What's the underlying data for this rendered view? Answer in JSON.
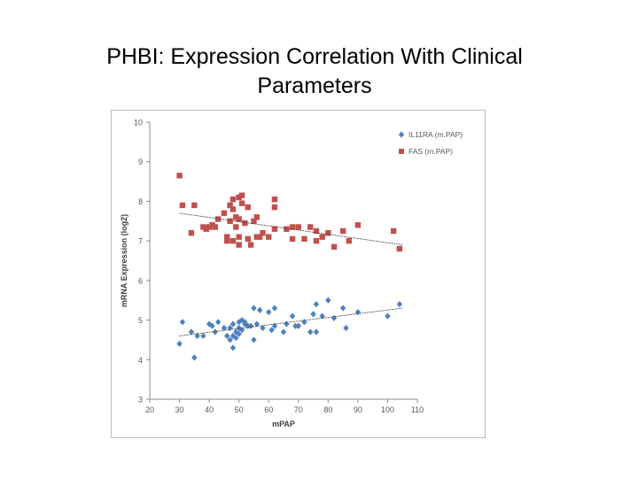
{
  "slide": {
    "title_line1": "PHBI: Expression Correlation With Clinical",
    "title_line2": "Parameters"
  },
  "chart_data": {
    "type": "scatter",
    "title": "",
    "xlabel": "mPAP",
    "ylabel": "mRNA Expression (log2)",
    "xlim": [
      20,
      110
    ],
    "ylim": [
      3,
      10
    ],
    "x_ticks": [
      20,
      30,
      40,
      50,
      60,
      70,
      80,
      90,
      100,
      110
    ],
    "y_ticks": [
      3,
      4,
      5,
      6,
      7,
      8,
      9,
      10
    ],
    "grid": false,
    "legend": "top-right",
    "series": [
      {
        "name": "IL11RA (m.PAP)",
        "color": "#4f81bd",
        "marker": "diamond",
        "trendline": [
          [
            30,
            4.6
          ],
          [
            105,
            5.3
          ]
        ],
        "points": [
          [
            30,
            4.4
          ],
          [
            31,
            4.95
          ],
          [
            34,
            4.7
          ],
          [
            35,
            4.05
          ],
          [
            36,
            4.6
          ],
          [
            38,
            4.6
          ],
          [
            40,
            4.9
          ],
          [
            41,
            4.85
          ],
          [
            42,
            4.7
          ],
          [
            43,
            4.95
          ],
          [
            45,
            4.8
          ],
          [
            46,
            4.6
          ],
          [
            47,
            4.5
          ],
          [
            47,
            4.8
          ],
          [
            48,
            4.9
          ],
          [
            48,
            4.6
          ],
          [
            48,
            4.3
          ],
          [
            49,
            4.7
          ],
          [
            49,
            4.55
          ],
          [
            50,
            4.95
          ],
          [
            50,
            4.8
          ],
          [
            50,
            4.65
          ],
          [
            51,
            4.75
          ],
          [
            51,
            5.0
          ],
          [
            52,
            4.9
          ],
          [
            52,
            4.95
          ],
          [
            53,
            4.85
          ],
          [
            54,
            4.85
          ],
          [
            55,
            5.3
          ],
          [
            55,
            4.5
          ],
          [
            56,
            4.9
          ],
          [
            57,
            5.25
          ],
          [
            58,
            4.8
          ],
          [
            60,
            5.2
          ],
          [
            61,
            4.75
          ],
          [
            62,
            4.85
          ],
          [
            62,
            5.3
          ],
          [
            65,
            4.7
          ],
          [
            66,
            4.9
          ],
          [
            68,
            5.1
          ],
          [
            69,
            4.85
          ],
          [
            70,
            4.85
          ],
          [
            72,
            4.95
          ],
          [
            74,
            4.7
          ],
          [
            75,
            5.15
          ],
          [
            76,
            5.4
          ],
          [
            76,
            4.7
          ],
          [
            78,
            5.1
          ],
          [
            80,
            5.5
          ],
          [
            82,
            5.05
          ],
          [
            85,
            5.3
          ],
          [
            86,
            4.8
          ],
          [
            90,
            5.2
          ],
          [
            100,
            5.1
          ],
          [
            104,
            5.4
          ]
        ]
      },
      {
        "name": "FAS (m.PAP)",
        "color": "#c0504d",
        "marker": "square",
        "trendline": [
          [
            30,
            7.7
          ],
          [
            105,
            6.9
          ]
        ],
        "points": [
          [
            30,
            8.65
          ],
          [
            31,
            7.9
          ],
          [
            34,
            7.2
          ],
          [
            35,
            7.9
          ],
          [
            38,
            7.35
          ],
          [
            39,
            7.3
          ],
          [
            40,
            7.35
          ],
          [
            41,
            7.4
          ],
          [
            42,
            7.35
          ],
          [
            43,
            7.55
          ],
          [
            45,
            7.7
          ],
          [
            46,
            7.1
          ],
          [
            46,
            7.0
          ],
          [
            47,
            7.9
          ],
          [
            47,
            7.5
          ],
          [
            48,
            8.05
          ],
          [
            48,
            7.8
          ],
          [
            48,
            7.0
          ],
          [
            49,
            7.35
          ],
          [
            49,
            7.6
          ],
          [
            50,
            8.1
          ],
          [
            50,
            7.55
          ],
          [
            50,
            7.1
          ],
          [
            50,
            6.9
          ],
          [
            51,
            8.15
          ],
          [
            51,
            7.95
          ],
          [
            52,
            7.45
          ],
          [
            53,
            7.05
          ],
          [
            53,
            7.85
          ],
          [
            54,
            6.9
          ],
          [
            55,
            7.5
          ],
          [
            56,
            7.6
          ],
          [
            56,
            7.1
          ],
          [
            57,
            7.1
          ],
          [
            58,
            7.2
          ],
          [
            60,
            7.1
          ],
          [
            62,
            8.05
          ],
          [
            62,
            7.85
          ],
          [
            62,
            7.3
          ],
          [
            66,
            7.3
          ],
          [
            68,
            7.05
          ],
          [
            68,
            7.35
          ],
          [
            70,
            7.35
          ],
          [
            72,
            7.05
          ],
          [
            74,
            7.35
          ],
          [
            76,
            7.25
          ],
          [
            76,
            7.0
          ],
          [
            78,
            7.1
          ],
          [
            80,
            7.2
          ],
          [
            82,
            6.85
          ],
          [
            85,
            7.25
          ],
          [
            87,
            7.0
          ],
          [
            90,
            7.4
          ],
          [
            102,
            7.25
          ],
          [
            104,
            6.8
          ]
        ]
      }
    ]
  }
}
